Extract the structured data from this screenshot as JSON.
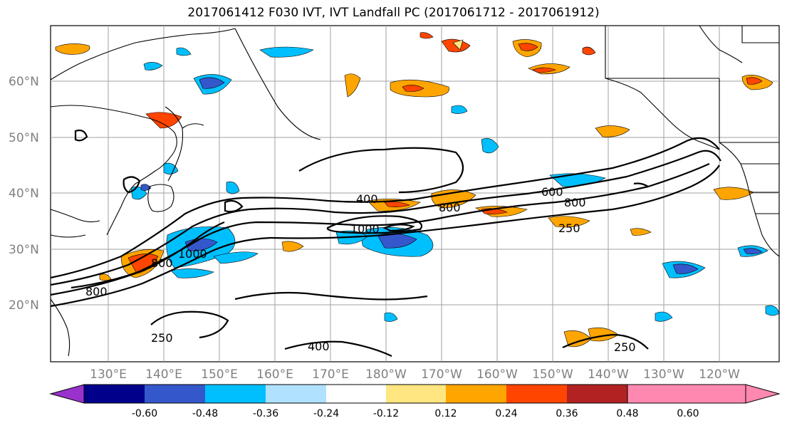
{
  "title": "2017061412 F030 IVT, IVT Landfall PC (2017061712 - 2017061912)",
  "map": {
    "lat_ticks": [
      "60°N",
      "50°N",
      "40°N",
      "30°N",
      "20°N"
    ],
    "lon_ticks": [
      "130°E",
      "140°E",
      "150°E",
      "160°E",
      "170°E",
      "180°W",
      "170°W",
      "160°W",
      "150°W",
      "140°W",
      "130°W",
      "120°W"
    ],
    "ivt_contour_labels": [
      "400",
      "800",
      "1000",
      "1000",
      "800",
      "600",
      "800",
      "250",
      "800",
      "250",
      "250",
      "400"
    ],
    "grid": true
  },
  "colorbar": {
    "colors": [
      "#9932cc",
      "#00008b",
      "#3458cc",
      "#00bfff",
      "#b0e2ff",
      "#ffffff",
      "#ffe680",
      "#ffa500",
      "#ff4500",
      "#b22222",
      "#ff88b0"
    ],
    "tick_labels": [
      "-0.60",
      "-0.48",
      "-0.36",
      "-0.24",
      "-0.12",
      "0.12",
      "0.24",
      "0.36",
      "0.48",
      "0.60"
    ]
  }
}
